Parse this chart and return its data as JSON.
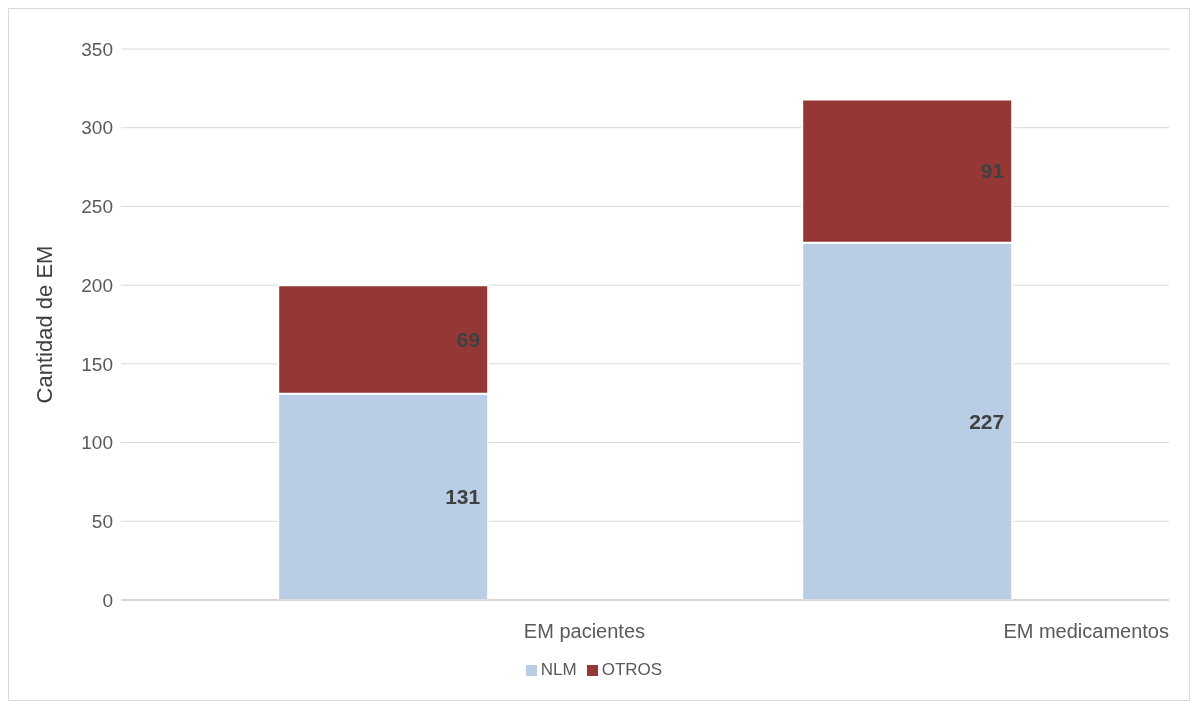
{
  "chart_data": {
    "type": "bar",
    "stacked": true,
    "ylabel": "Cantidad de EM",
    "categories": [
      "EM pacientes",
      "EM medicamentos"
    ],
    "series": [
      {
        "name": "NLM",
        "color": "#b9cde5",
        "values": [
          131,
          227
        ]
      },
      {
        "name": "OTROS",
        "color": "#953735",
        "values": [
          69,
          91
        ]
      }
    ],
    "ylim": [
      0,
      350
    ],
    "yticks": [
      0,
      50,
      100,
      150,
      200,
      250,
      300,
      350
    ],
    "grid": "y",
    "legend": "bottom",
    "data_labels": true
  }
}
